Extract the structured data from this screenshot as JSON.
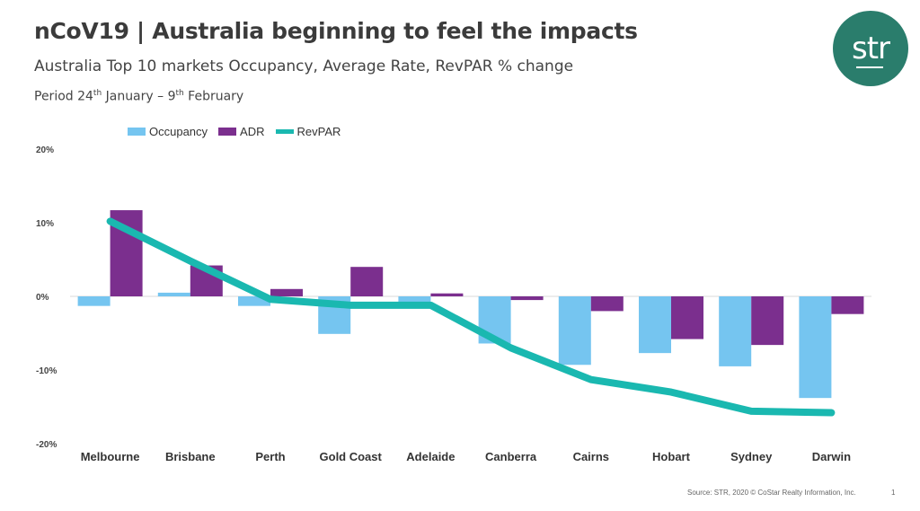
{
  "header": {
    "title": "nCoV19 | Australia beginning to feel the impacts",
    "subtitle": "Australia Top 10 markets Occupancy, Average Rate, RevPAR % change",
    "period_pre": "Period 24",
    "period_sup1": "th",
    "period_mid": " January – 9",
    "period_sup2": "th",
    "period_post": " February"
  },
  "logo": {
    "text": "str",
    "color": "#2a7d6c"
  },
  "footer": {
    "source": "Source: STR, 2020 © CoStar Realty Information, Inc.",
    "page": "1"
  },
  "chart_data": {
    "type": "bar",
    "categories": [
      "Melbourne",
      "Brisbane",
      "Perth",
      "Gold Coast",
      "Adelaide",
      "Canberra",
      "Cairns",
      "Hobart",
      "Sydney",
      "Darwin"
    ],
    "series": [
      {
        "name": "Occupancy",
        "kind": "bar",
        "color": "#75c5f0",
        "values": [
          -1.3,
          0.5,
          -1.3,
          -5.1,
          -1.0,
          -6.4,
          -9.3,
          -7.7,
          -9.5,
          -13.8
        ]
      },
      {
        "name": "ADR",
        "kind": "bar",
        "color": "#7b2f8e",
        "values": [
          11.7,
          4.2,
          1.0,
          4.0,
          0.4,
          -0.5,
          -2.0,
          -5.8,
          -6.6,
          -2.4
        ]
      },
      {
        "name": "RevPAR",
        "kind": "line",
        "color": "#1ab8b0",
        "values": [
          10.2,
          4.8,
          -0.4,
          -1.2,
          -1.2,
          -7.0,
          -11.3,
          -13.0,
          -15.6,
          -15.8
        ]
      }
    ],
    "y_ticks": [
      "20%",
      "10%",
      "0%",
      "-10%",
      "-20%"
    ],
    "y_tick_values": [
      20,
      10,
      0,
      -10,
      -20
    ],
    "ylim": [
      -20,
      20
    ],
    "grid": false,
    "legend_position": "top-left"
  }
}
